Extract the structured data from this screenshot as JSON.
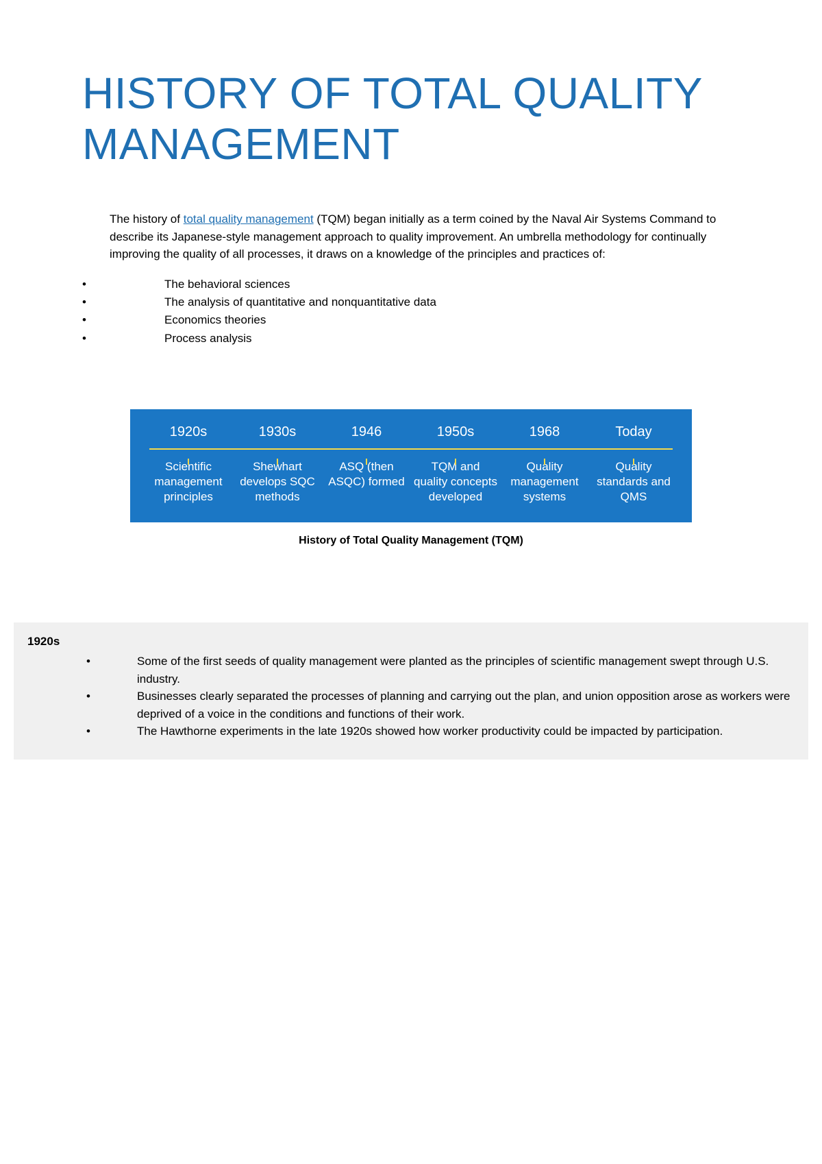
{
  "title": "HISTORY OF TOTAL QUALITY MANAGEMENT",
  "intro": {
    "prefix": "The history of ",
    "link_text": "total quality management",
    "suffix": " (TQM) began initially as a term coined by the Naval Air Systems Command to describe its Japanese-style management approach to quality improvement. An umbrella methodology for continually improving the quality of all processes, it draws on a knowledge of the principles and practices of:"
  },
  "principles": [
    "The behavioral sciences",
    "The analysis of quantitative and nonquantitative data",
    "Economics theories",
    "Process analysis"
  ],
  "timeline": {
    "background_color": "#1b77c5",
    "line_color": "#f5d94a",
    "text_color": "#ffffff",
    "items": [
      {
        "year": "1920s",
        "desc": "Scientific management principles"
      },
      {
        "year": "1930s",
        "desc": "Shewhart develops SQC methods"
      },
      {
        "year": "1946",
        "desc": "ASQ (then ASQC) formed"
      },
      {
        "year": "1950s",
        "desc": "TQM and quality concepts developed"
      },
      {
        "year": "1968",
        "desc": "Quality management systems"
      },
      {
        "year": "Today",
        "desc": "Quality standards and QMS"
      }
    ]
  },
  "caption": "History of Total Quality Management (TQM)",
  "decade": {
    "title": "1920s",
    "points": [
      "Some of the first seeds of quality management were planted as the principles of scientific management swept through U.S. industry.",
      "Businesses clearly separated the processes of planning and carrying out the plan, and union opposition arose as workers were deprived of a voice in the conditions and functions of their work.",
      "The Hawthorne experiments in the late 1920s showed how worker productivity could be impacted by participation."
    ]
  },
  "colors": {
    "heading": "#1f6fb2",
    "link": "#1f6fb2",
    "body_text": "#000000",
    "page_bg": "#ffffff",
    "box_bg": "#f0f0f0"
  }
}
